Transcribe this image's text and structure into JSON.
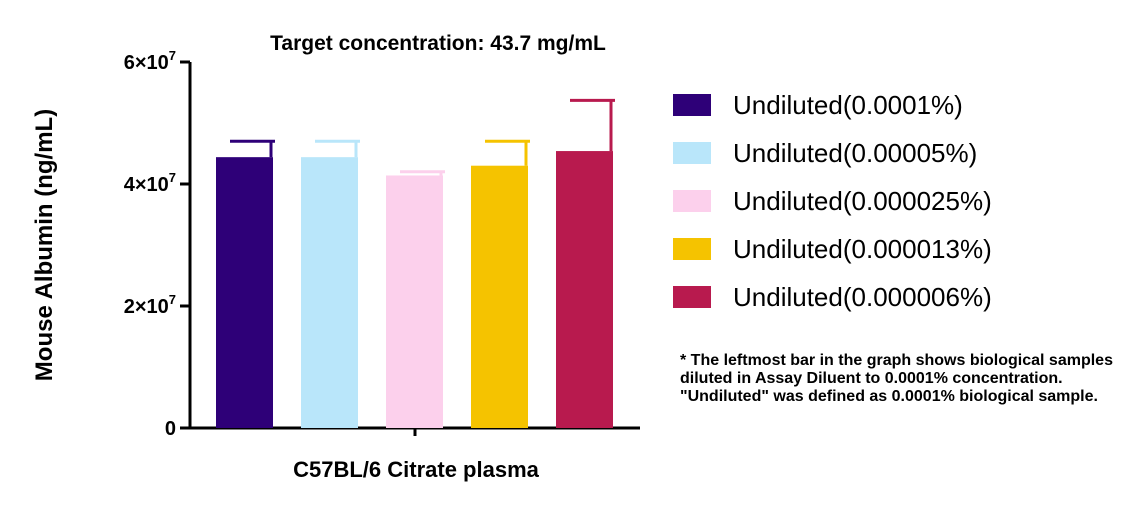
{
  "chart_data": {
    "type": "bar",
    "title": "Target concentration: 43.7 mg/mL",
    "xlabel": "C57BL/6 Citrate plasma",
    "ylabel": "Mouse Albumin (ng/mL)",
    "ylim": [
      0,
      60000000
    ],
    "yticks": [
      {
        "value": 0,
        "base": "0",
        "exp": ""
      },
      {
        "value": 20000000,
        "base": "2×10",
        "exp": "7"
      },
      {
        "value": 40000000,
        "base": "4×10",
        "exp": "7"
      },
      {
        "value": 60000000,
        "base": "6×10",
        "exp": "7"
      }
    ],
    "grid": false,
    "legend_position": "right",
    "series": [
      {
        "name": "Undiluted(0.0001%)",
        "value": 44400000,
        "error": 2600000,
        "color": "#2e0078"
      },
      {
        "name": "Undiluted(0.00005%)",
        "value": 44400000,
        "error": 2600000,
        "color": "#b9e6fa"
      },
      {
        "name": "Undiluted(0.000025%)",
        "value": 41400000,
        "error": 600000,
        "color": "#fcd0ec"
      },
      {
        "name": "Undiluted(0.000013%)",
        "value": 43000000,
        "error": 4000000,
        "color": "#f5c300"
      },
      {
        "name": "Undiluted(0.000006%)",
        "value": 45400000,
        "error": 8300000,
        "color": "#b81a4e"
      }
    ]
  },
  "note": "* The leftmost bar in the graph shows biological samples diluted in Assay Diluent to 0.0001% concentration. \"Undiluted\" was defined as 0.0001% biological sample."
}
